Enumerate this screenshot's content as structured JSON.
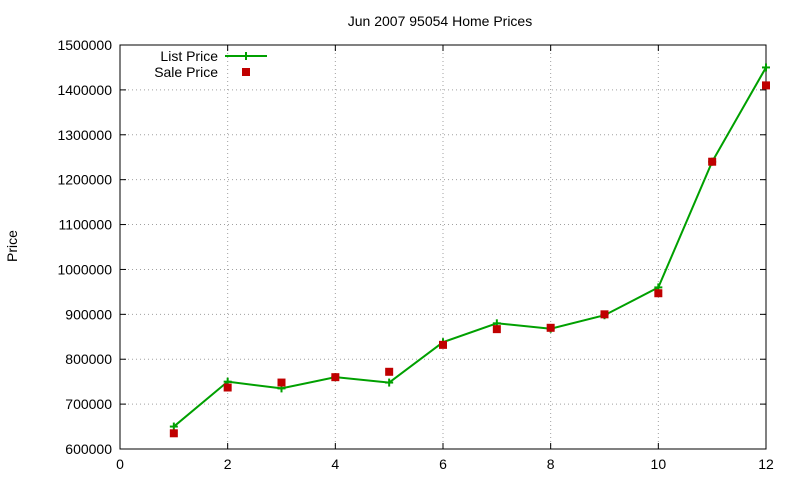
{
  "chart_data": {
    "type": "line",
    "title": "Jun 2007 95054 Home Prices",
    "xlabel": "",
    "ylabel": "Price",
    "xlim": [
      0,
      12
    ],
    "ylim": [
      600000,
      1500000
    ],
    "xticks": [
      0,
      2,
      4,
      6,
      8,
      10,
      12
    ],
    "yticks": [
      600000,
      700000,
      800000,
      900000,
      1000000,
      1100000,
      1200000,
      1300000,
      1400000,
      1500000
    ],
    "grid": true,
    "legend_position": "top-left",
    "series": [
      {
        "name": "List Price",
        "style": "line-with-plus-markers",
        "color": "#00a000",
        "x": [
          1,
          2,
          3,
          4,
          5,
          6,
          7,
          8,
          9,
          10,
          11,
          12
        ],
        "values": [
          650000,
          750000,
          735000,
          760000,
          748000,
          838000,
          880000,
          868000,
          898000,
          960000,
          1240000,
          1450000
        ]
      },
      {
        "name": "Sale Price",
        "style": "square-points",
        "color": "#c00000",
        "x": [
          1,
          2,
          3,
          4,
          5,
          6,
          7,
          8,
          9,
          10,
          11,
          12
        ],
        "values": [
          635000,
          737000,
          748000,
          760000,
          772000,
          832000,
          867000,
          870000,
          900000,
          947000,
          1240000,
          1410000
        ]
      }
    ]
  }
}
